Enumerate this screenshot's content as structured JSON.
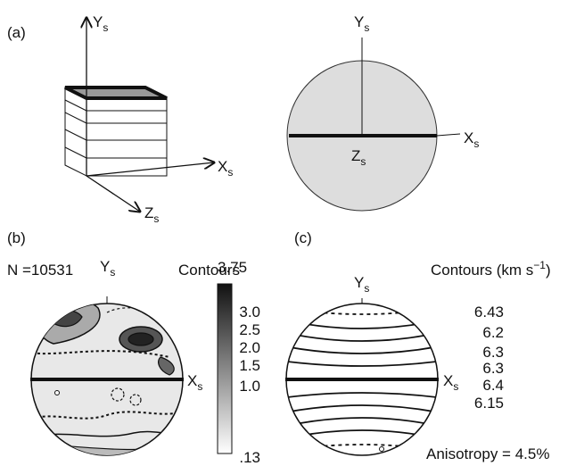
{
  "panel_a": {
    "label": "(a)",
    "block_axes": {
      "y": {
        "main": "Y",
        "sub": "s"
      },
      "x": {
        "main": "X",
        "sub": "s"
      },
      "z": {
        "main": "Z",
        "sub": "s"
      }
    },
    "circle_axes": {
      "y": {
        "main": "Y",
        "sub": "s"
      },
      "x": {
        "main": "X",
        "sub": "s"
      },
      "z": {
        "main": "Z",
        "sub": "s"
      }
    }
  },
  "panel_b": {
    "label": "(b)",
    "n": "N =10531",
    "legend_title": "Contours",
    "scale": [
      "3.75",
      "3.0",
      "2.5",
      "2.0",
      "1.5",
      "1.0",
      ".13"
    ],
    "axes": {
      "y": {
        "main": "Y",
        "sub": "s"
      },
      "x": {
        "main": "X",
        "sub": "s"
      }
    }
  },
  "panel_c": {
    "label": "(c)",
    "legend_title": {
      "text": "Contours (km s",
      "sup": "−1",
      "close": ")"
    },
    "contours": [
      "6.43",
      "6.2",
      "6.3",
      "6.3",
      "6.4",
      "6.15"
    ],
    "anisotropy": "Anisotropy = 4.5%",
    "axes": {
      "y": {
        "main": "Y",
        "sub": "s"
      },
      "x": {
        "main": "X",
        "sub": "s"
      }
    }
  }
}
